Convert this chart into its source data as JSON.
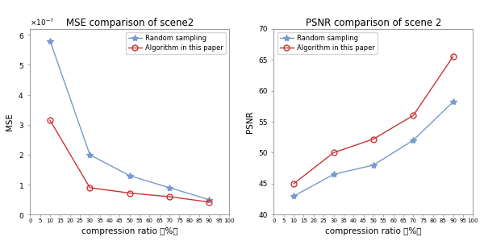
{
  "x_values": [
    10,
    30,
    50,
    70,
    90
  ],
  "mse_random": [
    5.8e-07,
    2e-07,
    1.3e-07,
    9e-08,
    5e-08
  ],
  "mse_algo": [
    3.15e-07,
    9e-08,
    7.2e-08,
    6e-08,
    4.2e-08
  ],
  "psnr_random": [
    43.0,
    46.5,
    48.0,
    52.0,
    58.2
  ],
  "psnr_algo": [
    45.0,
    50.0,
    52.2,
    56.0,
    65.5
  ],
  "mse_title": "MSE comparison of scene2",
  "psnr_title": "PSNR comparison of scene 2",
  "xlabel": "compression ratio （%）",
  "mse_ylabel": "MSE",
  "psnr_ylabel": "PSNR",
  "legend_random": "Random sampling",
  "legend_algo": "Algorithm in this paper",
  "color_random": "#7799cc",
  "color_algo": "#cc3333",
  "xtick_labels": [
    "0",
    "5",
    "10",
    "15",
    "20",
    "25",
    "30",
    "35",
    "40",
    "45",
    "50",
    "55",
    "60",
    "65",
    "70",
    "75",
    "80",
    "85",
    "90",
    "95",
    "100"
  ],
  "xtick_positions": [
    0,
    5,
    10,
    15,
    20,
    25,
    30,
    35,
    40,
    45,
    50,
    55,
    60,
    65,
    70,
    75,
    80,
    85,
    90,
    95,
    100
  ],
  "mse_ylim": [
    0,
    6.2e-07
  ],
  "mse_yticks": [
    0,
    1e-07,
    2e-07,
    3e-07,
    4e-07,
    5e-07,
    6e-07
  ],
  "psnr_ylim": [
    40,
    70
  ],
  "psnr_yticks": [
    40,
    45,
    50,
    55,
    60,
    65,
    70
  ]
}
